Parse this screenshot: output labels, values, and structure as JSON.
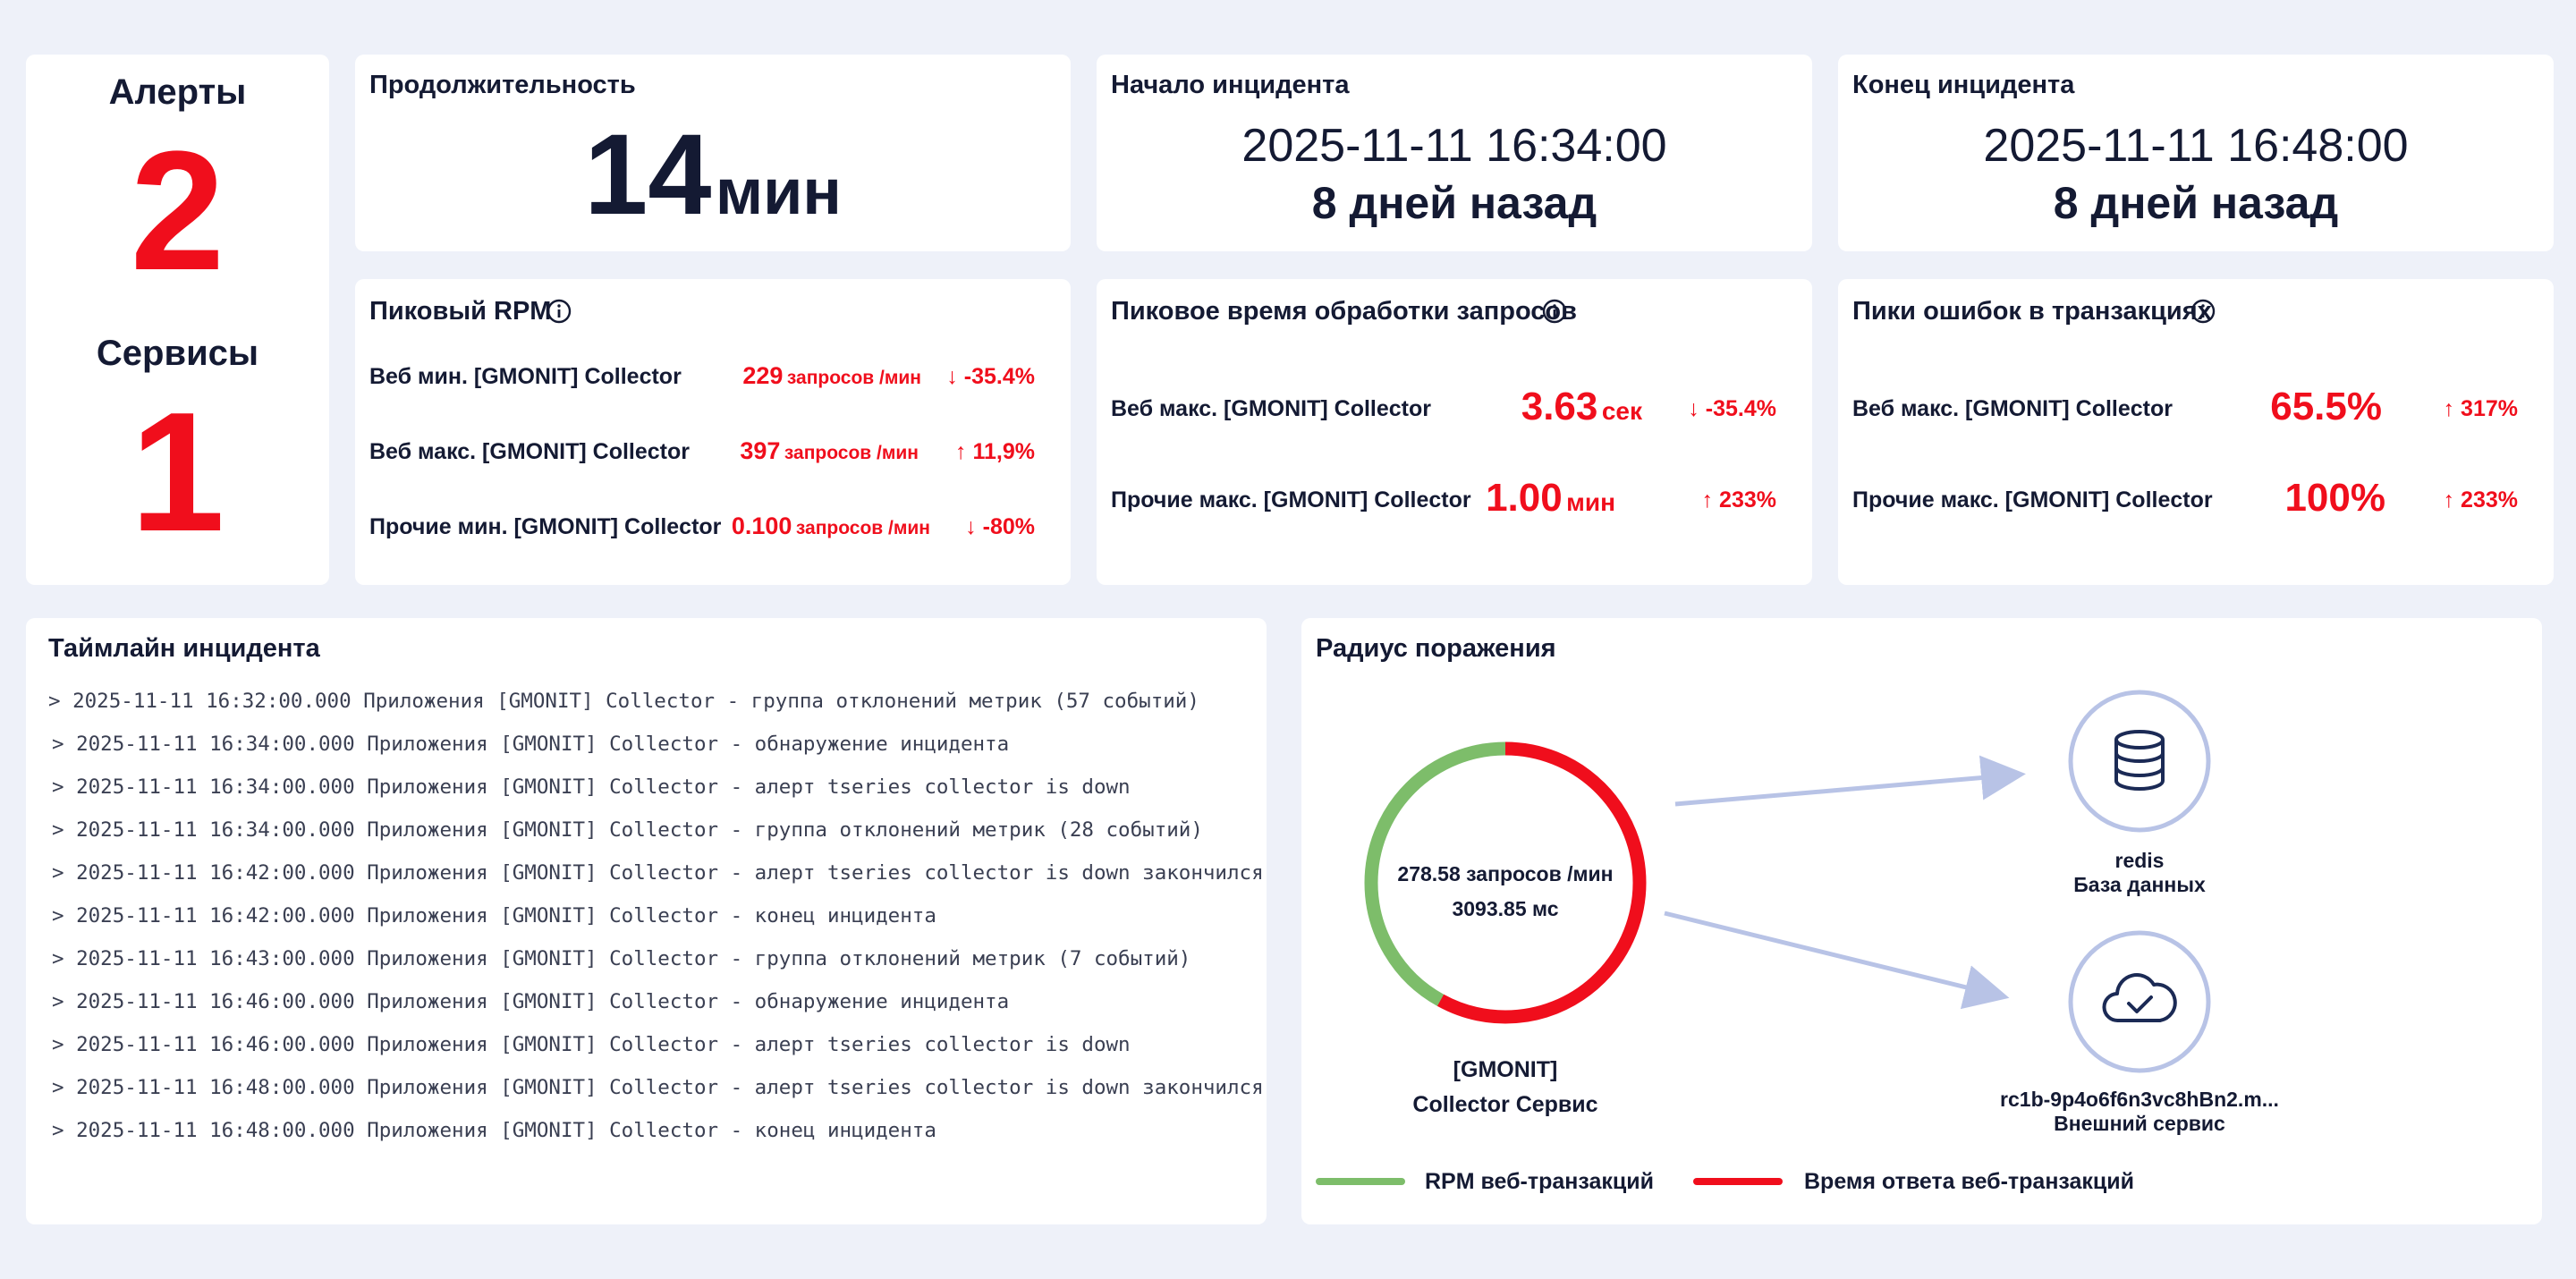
{
  "alerts": {
    "title": "Алерты",
    "value": "2",
    "services_title": "Сервисы",
    "services_value": "1"
  },
  "duration": {
    "title": "Продолжительность",
    "value": "14",
    "unit": "мин"
  },
  "start": {
    "title": "Начало инцидента",
    "datetime": "2025-11-11 16:34:00",
    "relative": "8 дней назад"
  },
  "end": {
    "title": "Конец инцидента",
    "datetime": "2025-11-11 16:48:00",
    "relative": "8 дней назад"
  },
  "peak_rpm": {
    "title": "Пиковый RPM",
    "rows": [
      {
        "label": "Веб мин. [GMONIT] Collector",
        "value": "229",
        "unit": "запросов /мин",
        "delta": "↓ -35.4%"
      },
      {
        "label": "Веб макс. [GMONIT] Collector",
        "value": "397",
        "unit": "запросов /мин",
        "delta": "↑ 11,9%"
      },
      {
        "label": "Прочие мин. [GMONIT] Collector",
        "value": "0.100",
        "unit": "запросов /мин",
        "delta": "↓ -80%"
      }
    ]
  },
  "peak_time": {
    "title": "Пиковое время обработки запросов",
    "rows": [
      {
        "label": "Веб макс. [GMONIT] Collector",
        "value": "3.63",
        "unit": "сек",
        "delta": "↓ -35.4%"
      },
      {
        "label": "Прочие макс. [GMONIT] Collector",
        "value": "1.00",
        "unit": "мин",
        "delta": "↑ 233%"
      }
    ]
  },
  "peak_errors": {
    "title": "Пики ошибок в транзакциях",
    "rows": [
      {
        "label": "Веб макс. [GMONIT] Collector",
        "value": "65.5%",
        "delta": "↑ 317%"
      },
      {
        "label": "Прочие макс. [GMONIT] Collector",
        "value": "100%",
        "delta": "↑ 233%"
      }
    ]
  },
  "timeline": {
    "title": "Таймлайн инцидента",
    "events": [
      "> 2025-11-11 16:32:00.000 Приложения [GMONIT] Collector - группа отклонений метрик (57 событий)",
      "> 2025-11-11 16:34:00.000 Приложения [GMONIT] Collector - обнаружение инцидента",
      "> 2025-11-11 16:34:00.000 Приложения [GMONIT] Collector - алерт tseries collector is down",
      "> 2025-11-11 16:34:00.000 Приложения [GMONIT] Collector - группа отклонений метрик (28 событий)",
      "> 2025-11-11 16:42:00.000 Приложения [GMONIT] Collector - алерт tseries collector is down закончился",
      "> 2025-11-11 16:42:00.000 Приложения [GMONIT] Collector - конец инцидента",
      "> 2025-11-11 16:43:00.000 Приложения [GMONIT] Collector - группа отклонений метрик (7 событий)",
      "> 2025-11-11 16:46:00.000 Приложения [GMONIT] Collector - обнаружение инцидента",
      "> 2025-11-11 16:46:00.000 Приложения [GMONIT] Collector - алерт tseries collector is down",
      "> 2025-11-11 16:48:00.000 Приложения [GMONIT] Collector - алерт tseries collector is down закончился",
      "> 2025-11-11 16:48:00.000 Приложения [GMONIT] Collector - конец инцидента"
    ]
  },
  "blast": {
    "title": "Радиус поражения",
    "center_rpm": "278.58 запросов /мин",
    "center_ms": "3093.85 мс",
    "service_line1": "[GMONIT]",
    "service_line2": "Collector Сервис",
    "rpm_fraction": 0.42,
    "node1_name": "redis",
    "node1_type": "База данных",
    "node1_icon": "database-icon",
    "node2_name": "rc1b-9p4o6f6n3vc8hBn2.m...",
    "node2_type": "Внешний сервис",
    "node2_icon": "cloud-check-icon",
    "legend_rpm": "RPM веб-транзакций",
    "legend_time": "Время ответа веб-транзакций",
    "color_rpm": "#7dbd6a",
    "color_time": "#f00e1c",
    "color_node": "#b8c3e6"
  }
}
